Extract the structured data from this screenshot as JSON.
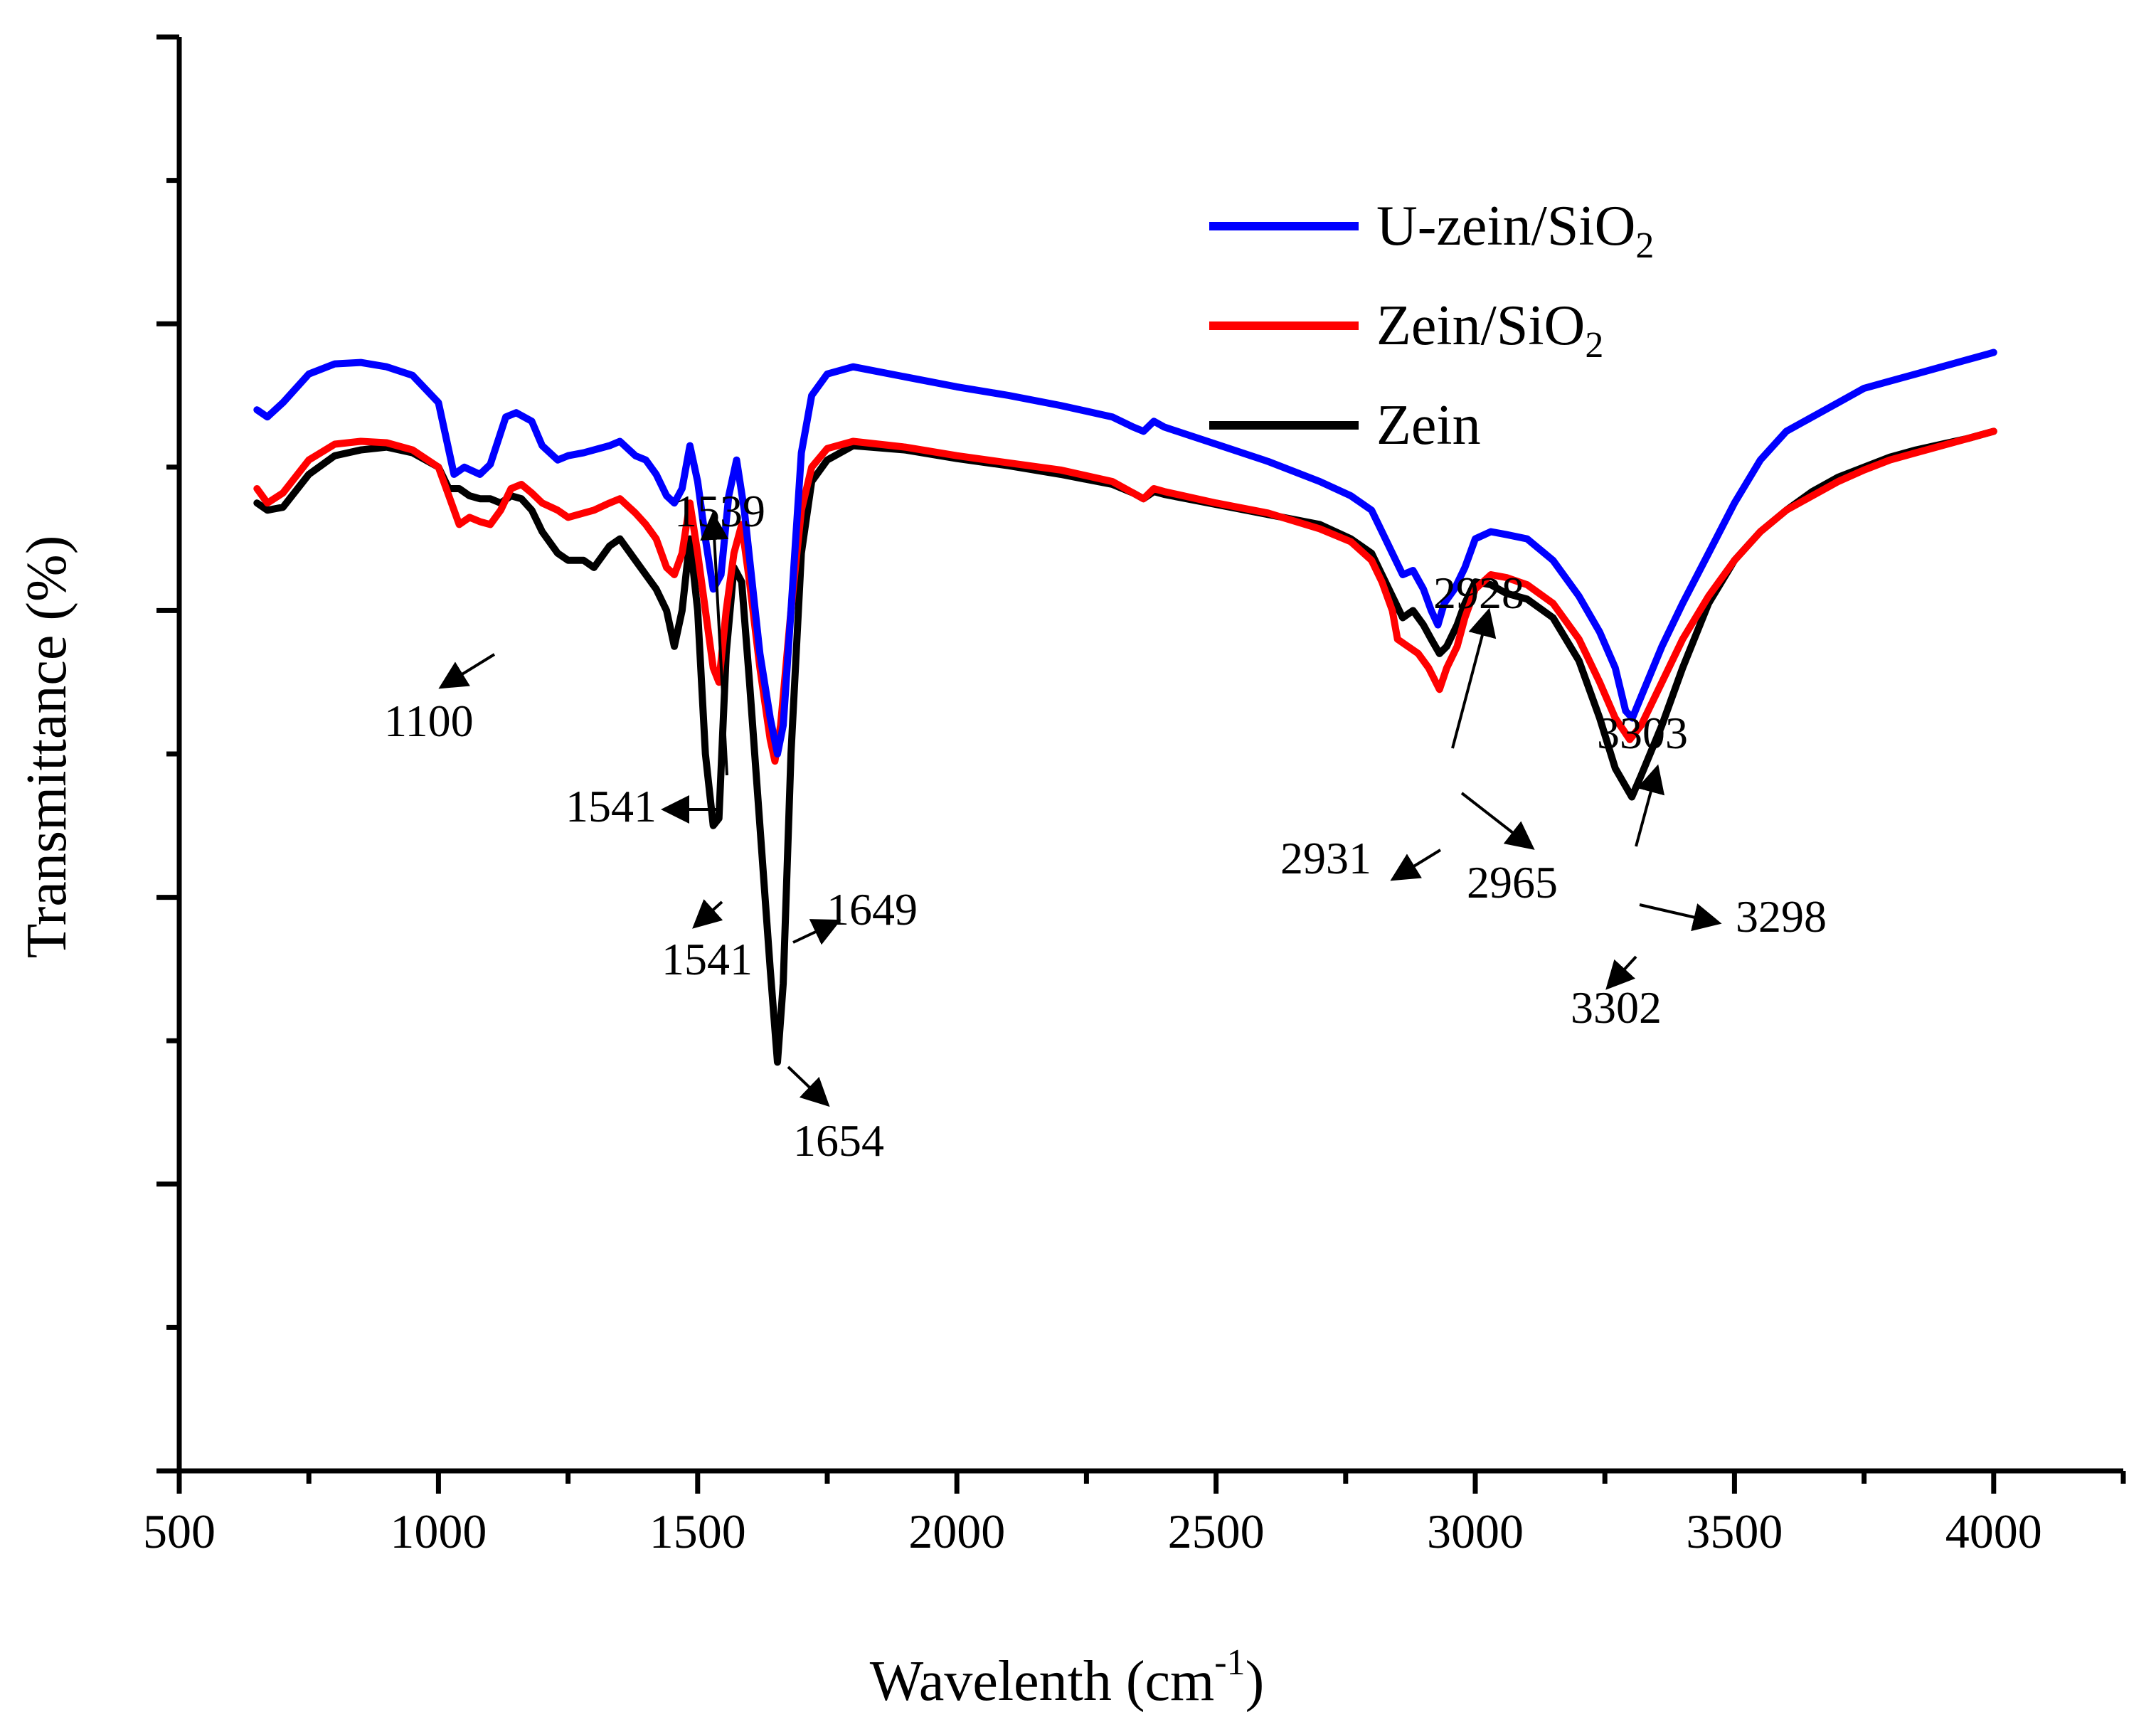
{
  "chart_data": {
    "type": "line",
    "title": "",
    "xlabel_main": "Wavelenth (cm",
    "xlabel_sup": "-1",
    "xlabel_end": ")",
    "ylabel": "Transmittance (%)",
    "xlim": [
      500,
      4250
    ],
    "ylim": [
      0,
      100
    ],
    "x_ticks": [
      500,
      1000,
      1500,
      2000,
      2500,
      3000,
      3500,
      4000
    ],
    "x_tick_labels": [
      "500",
      "1000",
      "1500",
      "2000",
      "2500",
      "3000",
      "3500",
      "4000"
    ],
    "y_tick_labels_shown": false,
    "legend": [
      {
        "name": "U-zein/SiO",
        "sub": "2",
        "color": "#0000ff"
      },
      {
        "name": "Zein/SiO",
        "sub": "2",
        "color": "#ff0000"
      },
      {
        "name": "Zein",
        "sub": "",
        "color": "#000000"
      }
    ],
    "series": [
      {
        "name": "U-zein/SiO2",
        "color": "#0000ff",
        "x": [
          650,
          670,
          700,
          750,
          800,
          850,
          900,
          950,
          1000,
          1030,
          1050,
          1080,
          1100,
          1130,
          1150,
          1180,
          1200,
          1230,
          1250,
          1280,
          1300,
          1330,
          1350,
          1380,
          1400,
          1420,
          1440,
          1455,
          1470,
          1485,
          1500,
          1515,
          1530,
          1545,
          1560,
          1575,
          1590,
          1605,
          1620,
          1640,
          1654,
          1665,
          1680,
          1700,
          1720,
          1750,
          1800,
          1900,
          2000,
          2100,
          2200,
          2300,
          2340,
          2360,
          2380,
          2400,
          2500,
          2600,
          2700,
          2760,
          2800,
          2820,
          2840,
          2860,
          2880,
          2900,
          2915,
          2928,
          2940,
          2960,
          2980,
          3000,
          3030,
          3060,
          3100,
          3150,
          3200,
          3240,
          3270,
          3290,
          3303,
          3320,
          3360,
          3400,
          3450,
          3500,
          3550,
          3600,
          3650,
          3700,
          3750,
          3800,
          3850,
          3900,
          3950,
          4000
        ],
        "y": [
          74,
          73.5,
          74.5,
          76.5,
          77.2,
          77.3,
          77.0,
          76.4,
          74.5,
          69.5,
          70.0,
          69.5,
          70.2,
          73.5,
          73.8,
          73.2,
          71.5,
          70.5,
          70.8,
          71.0,
          71.2,
          71.5,
          71.8,
          70.8,
          70.5,
          69.5,
          68.0,
          67.5,
          68.5,
          71.5,
          69.0,
          65.0,
          61.5,
          62.5,
          68.0,
          70.5,
          67.0,
          62.0,
          57.0,
          52.5,
          50.0,
          52.0,
          60.0,
          71.0,
          75.0,
          76.5,
          77.0,
          76.3,
          75.6,
          75.0,
          74.3,
          73.5,
          72.8,
          72.5,
          73.2,
          72.8,
          71.6,
          70.4,
          69.0,
          68.0,
          67.0,
          65.5,
          64.0,
          62.5,
          62.8,
          61.5,
          60.0,
          59.0,
          60.5,
          61.5,
          63.0,
          65.0,
          65.5,
          65.3,
          65.0,
          63.5,
          61.0,
          58.5,
          56.0,
          53.0,
          52.5,
          54.0,
          57.5,
          60.5,
          64.0,
          67.5,
          70.5,
          72.5,
          73.5,
          74.5,
          75.5,
          76.0,
          76.5,
          77.0,
          77.5,
          78.0
        ]
      },
      {
        "name": "Zein/SiO2",
        "color": "#ff0000",
        "x": [
          650,
          670,
          700,
          750,
          800,
          850,
          900,
          950,
          1000,
          1020,
          1040,
          1060,
          1080,
          1100,
          1120,
          1140,
          1160,
          1180,
          1200,
          1230,
          1250,
          1280,
          1300,
          1330,
          1350,
          1380,
          1400,
          1420,
          1440,
          1455,
          1470,
          1485,
          1500,
          1515,
          1530,
          1541,
          1555,
          1570,
          1585,
          1600,
          1620,
          1640,
          1649,
          1660,
          1680,
          1700,
          1720,
          1750,
          1800,
          1900,
          2000,
          2100,
          2200,
          2300,
          2340,
          2360,
          2380,
          2400,
          2500,
          2600,
          2700,
          2760,
          2800,
          2820,
          2840,
          2850,
          2870,
          2890,
          2910,
          2931,
          2945,
          2965,
          2980,
          3000,
          3030,
          3060,
          3100,
          3150,
          3200,
          3240,
          3270,
          3298,
          3320,
          3360,
          3400,
          3450,
          3500,
          3550,
          3600,
          3650,
          3700,
          3750,
          3800,
          3850,
          3900,
          3950,
          4000
        ],
        "y": [
          68.5,
          67.5,
          68.2,
          70.5,
          71.6,
          71.8,
          71.7,
          71.2,
          70.0,
          68.0,
          66.0,
          66.5,
          66.2,
          66.0,
          67.0,
          68.5,
          68.8,
          68.2,
          67.5,
          67.0,
          66.5,
          66.8,
          67.0,
          67.5,
          67.8,
          66.8,
          66.0,
          65.0,
          63.0,
          62.5,
          64.0,
          67.5,
          64.0,
          60.0,
          56.0,
          55.0,
          60.0,
          64.0,
          66.0,
          62.0,
          56.0,
          51.0,
          49.5,
          52.0,
          60.0,
          67.0,
          70.0,
          71.3,
          71.8,
          71.4,
          70.8,
          70.3,
          69.8,
          69.0,
          68.2,
          67.8,
          68.5,
          68.3,
          67.5,
          66.8,
          65.7,
          64.8,
          63.5,
          62.0,
          60.0,
          58.0,
          57.5,
          57.0,
          56.0,
          54.5,
          56.0,
          57.5,
          59.5,
          61.5,
          62.5,
          62.3,
          61.8,
          60.5,
          58.0,
          55.0,
          52.5,
          51.0,
          52.0,
          55.0,
          58.0,
          61.0,
          63.5,
          65.5,
          67.0,
          68.0,
          69.0,
          69.8,
          70.5,
          71.0,
          71.5,
          72.0,
          72.5
        ]
      },
      {
        "name": "Zein",
        "color": "#000000",
        "x": [
          650,
          670,
          700,
          750,
          800,
          850,
          900,
          950,
          1000,
          1020,
          1040,
          1060,
          1080,
          1100,
          1120,
          1140,
          1160,
          1180,
          1200,
          1230,
          1250,
          1280,
          1300,
          1330,
          1350,
          1380,
          1400,
          1420,
          1440,
          1455,
          1470,
          1485,
          1500,
          1515,
          1530,
          1541,
          1555,
          1570,
          1585,
          1600,
          1620,
          1640,
          1654,
          1665,
          1680,
          1700,
          1720,
          1750,
          1800,
          1900,
          2000,
          2100,
          2200,
          2300,
          2340,
          2360,
          2380,
          2400,
          2500,
          2600,
          2700,
          2760,
          2800,
          2820,
          2840,
          2860,
          2880,
          2900,
          2915,
          2931,
          2945,
          2965,
          2980,
          3000,
          3030,
          3060,
          3100,
          3150,
          3200,
          3240,
          3270,
          3302,
          3320,
          3360,
          3400,
          3450,
          3500,
          3550,
          3600,
          3650,
          3700,
          3750,
          3800,
          3850,
          3900,
          3950,
          4000
        ],
        "y": [
          67.5,
          67.0,
          67.2,
          69.5,
          70.8,
          71.2,
          71.4,
          71.0,
          70.0,
          68.5,
          68.5,
          68.0,
          67.8,
          67.8,
          67.5,
          68.0,
          67.8,
          67.0,
          65.5,
          64.0,
          63.5,
          63.5,
          63.0,
          64.5,
          65.0,
          63.5,
          62.5,
          61.5,
          60.0,
          57.5,
          60.0,
          65.0,
          60.0,
          50.0,
          45.0,
          45.5,
          57.0,
          63.0,
          62.0,
          55.0,
          45.0,
          35.0,
          28.5,
          34.0,
          50.0,
          64.0,
          69.0,
          70.5,
          71.5,
          71.2,
          70.6,
          70.1,
          69.5,
          68.8,
          68.2,
          67.8,
          68.3,
          68.1,
          67.4,
          66.7,
          66.0,
          65.0,
          64.0,
          62.5,
          61.0,
          59.5,
          60.0,
          59.0,
          58.0,
          57.0,
          57.5,
          59.0,
          60.5,
          62.0,
          61.8,
          61.2,
          60.8,
          59.5,
          56.5,
          52.5,
          49.0,
          47.0,
          48.5,
          52.0,
          56.0,
          60.5,
          63.5,
          65.5,
          67.0,
          68.3,
          69.3,
          70.0,
          70.7,
          71.2,
          71.6,
          72.0,
          72.5
        ]
      }
    ],
    "annotations": [
      {
        "label": "1100"
      },
      {
        "label": "1539"
      },
      {
        "label": "1541"
      },
      {
        "label": "1541"
      },
      {
        "label": "1649"
      },
      {
        "label": "1654"
      },
      {
        "label": "2928"
      },
      {
        "label": "2931"
      },
      {
        "label": "2965"
      },
      {
        "label": "3303"
      },
      {
        "label": "3298"
      },
      {
        "label": "3302"
      }
    ]
  }
}
